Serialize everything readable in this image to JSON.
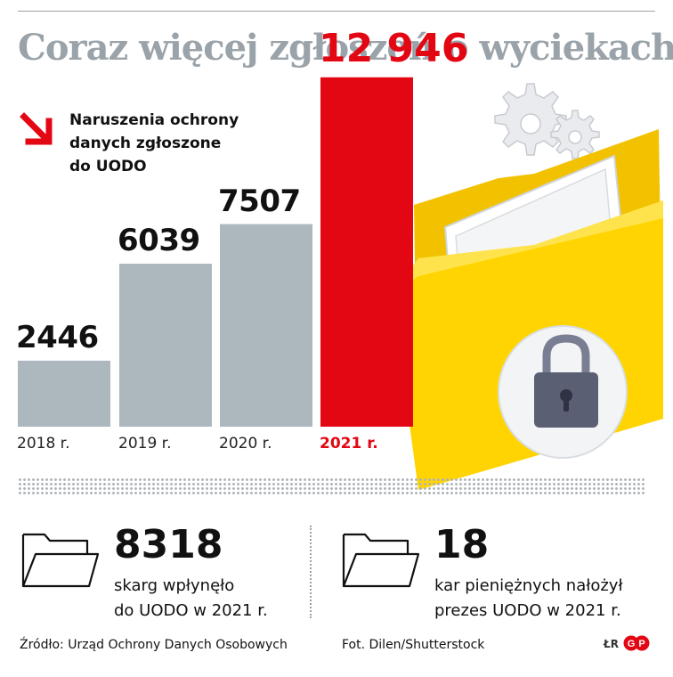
{
  "title": "Coraz więcej zgłoszeń o wyciekach",
  "legend": {
    "lines": [
      "Naruszenia ochrony",
      "danych zgłoszone",
      "do UODO"
    ]
  },
  "chart_data": {
    "type": "bar",
    "categories": [
      "2018 r.",
      "2019 r.",
      "2020 r.",
      "2021 r."
    ],
    "values": [
      2446,
      6039,
      7507,
      12946
    ],
    "value_labels": [
      "2446",
      "6039",
      "7507",
      "12 946"
    ],
    "highlight_index": 3,
    "ylim": [
      0,
      13500
    ],
    "grid": false,
    "colors": {
      "default": "#adb7be",
      "highlight": "#e30613"
    }
  },
  "stats": [
    {
      "value": "8318",
      "lines": [
        "skarg wpłynęło",
        "do UODO w 2021 r."
      ]
    },
    {
      "value": "18",
      "lines": [
        "kar pieniężnych nałożył",
        "prezes UODO w 2021 r."
      ]
    }
  ],
  "footer": {
    "source": "Źródło: Urząd Ochrony Danych Osobowych",
    "photo": "Fot. Dilen/Shutterstock",
    "author": "ŁR",
    "logo": "GP"
  },
  "illustration": {
    "icons": [
      "gear-icon",
      "folder-icon",
      "padlock-icon"
    ]
  },
  "colors": {
    "accent": "#e30613",
    "title": "#9aa3a9",
    "folder": "#ffd400",
    "lock": "#5b5f74"
  }
}
